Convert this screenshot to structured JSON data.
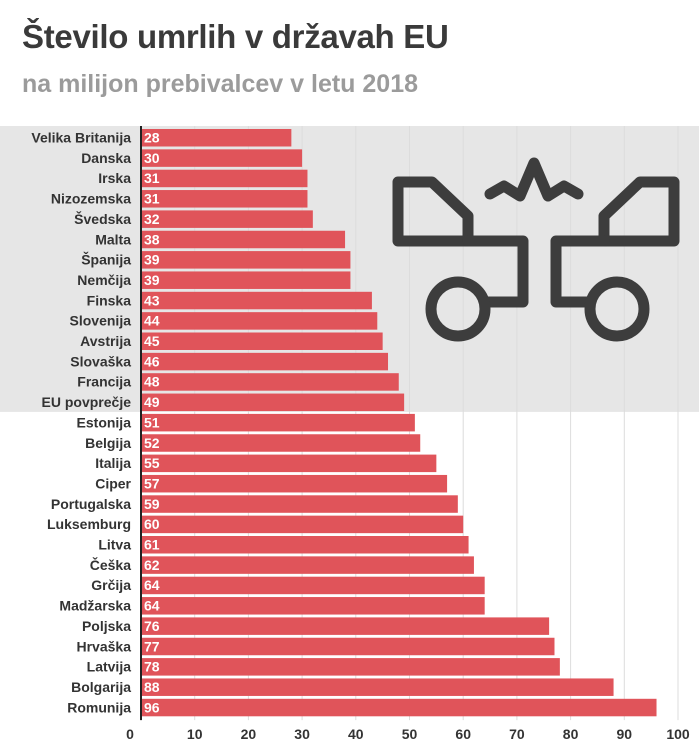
{
  "chart_data": {
    "type": "bar",
    "orientation": "horizontal",
    "title": "Število umrlih v državah EU",
    "subtitle": "na milijon prebivalcev v letu 2018",
    "categories": [
      "Velika Britanija",
      "Danska",
      "Irska",
      "Nizozemska",
      "Švedska",
      "Malta",
      "Španija",
      "Nemčija",
      "Finska",
      "Slovenija",
      "Avstrija",
      "Slovaška",
      "Francija",
      "EU povprečje",
      "Estonija",
      "Belgija",
      "Italija",
      "Ciper",
      "Portugalska",
      "Luksemburg",
      "Litva",
      "Češka",
      "Grčija",
      "Madžarska",
      "Poljska",
      "Hrvaška",
      "Latvija",
      "Bolgarija",
      "Romunija"
    ],
    "values": [
      28,
      30,
      31,
      31,
      32,
      38,
      39,
      39,
      43,
      44,
      45,
      46,
      48,
      49,
      51,
      52,
      55,
      57,
      59,
      60,
      61,
      62,
      64,
      64,
      76,
      77,
      78,
      88,
      96
    ],
    "xlim": [
      0,
      100
    ],
    "xticks": [
      "0",
      "10",
      "20",
      "30",
      "40",
      "50",
      "60",
      "70",
      "80",
      "90",
      "100"
    ],
    "grid": true,
    "highlight_band": "Velika Britanija – EU povprečje",
    "icon": "car-crash-icon",
    "colors": {
      "bar": "#e0545a",
      "band": "#e6e6e6",
      "icon": "#3d3d3d",
      "grid": "#dcdcdc",
      "text": "#333333",
      "title": "#3a3a3a",
      "subtitle": "#9b9b9b"
    }
  }
}
